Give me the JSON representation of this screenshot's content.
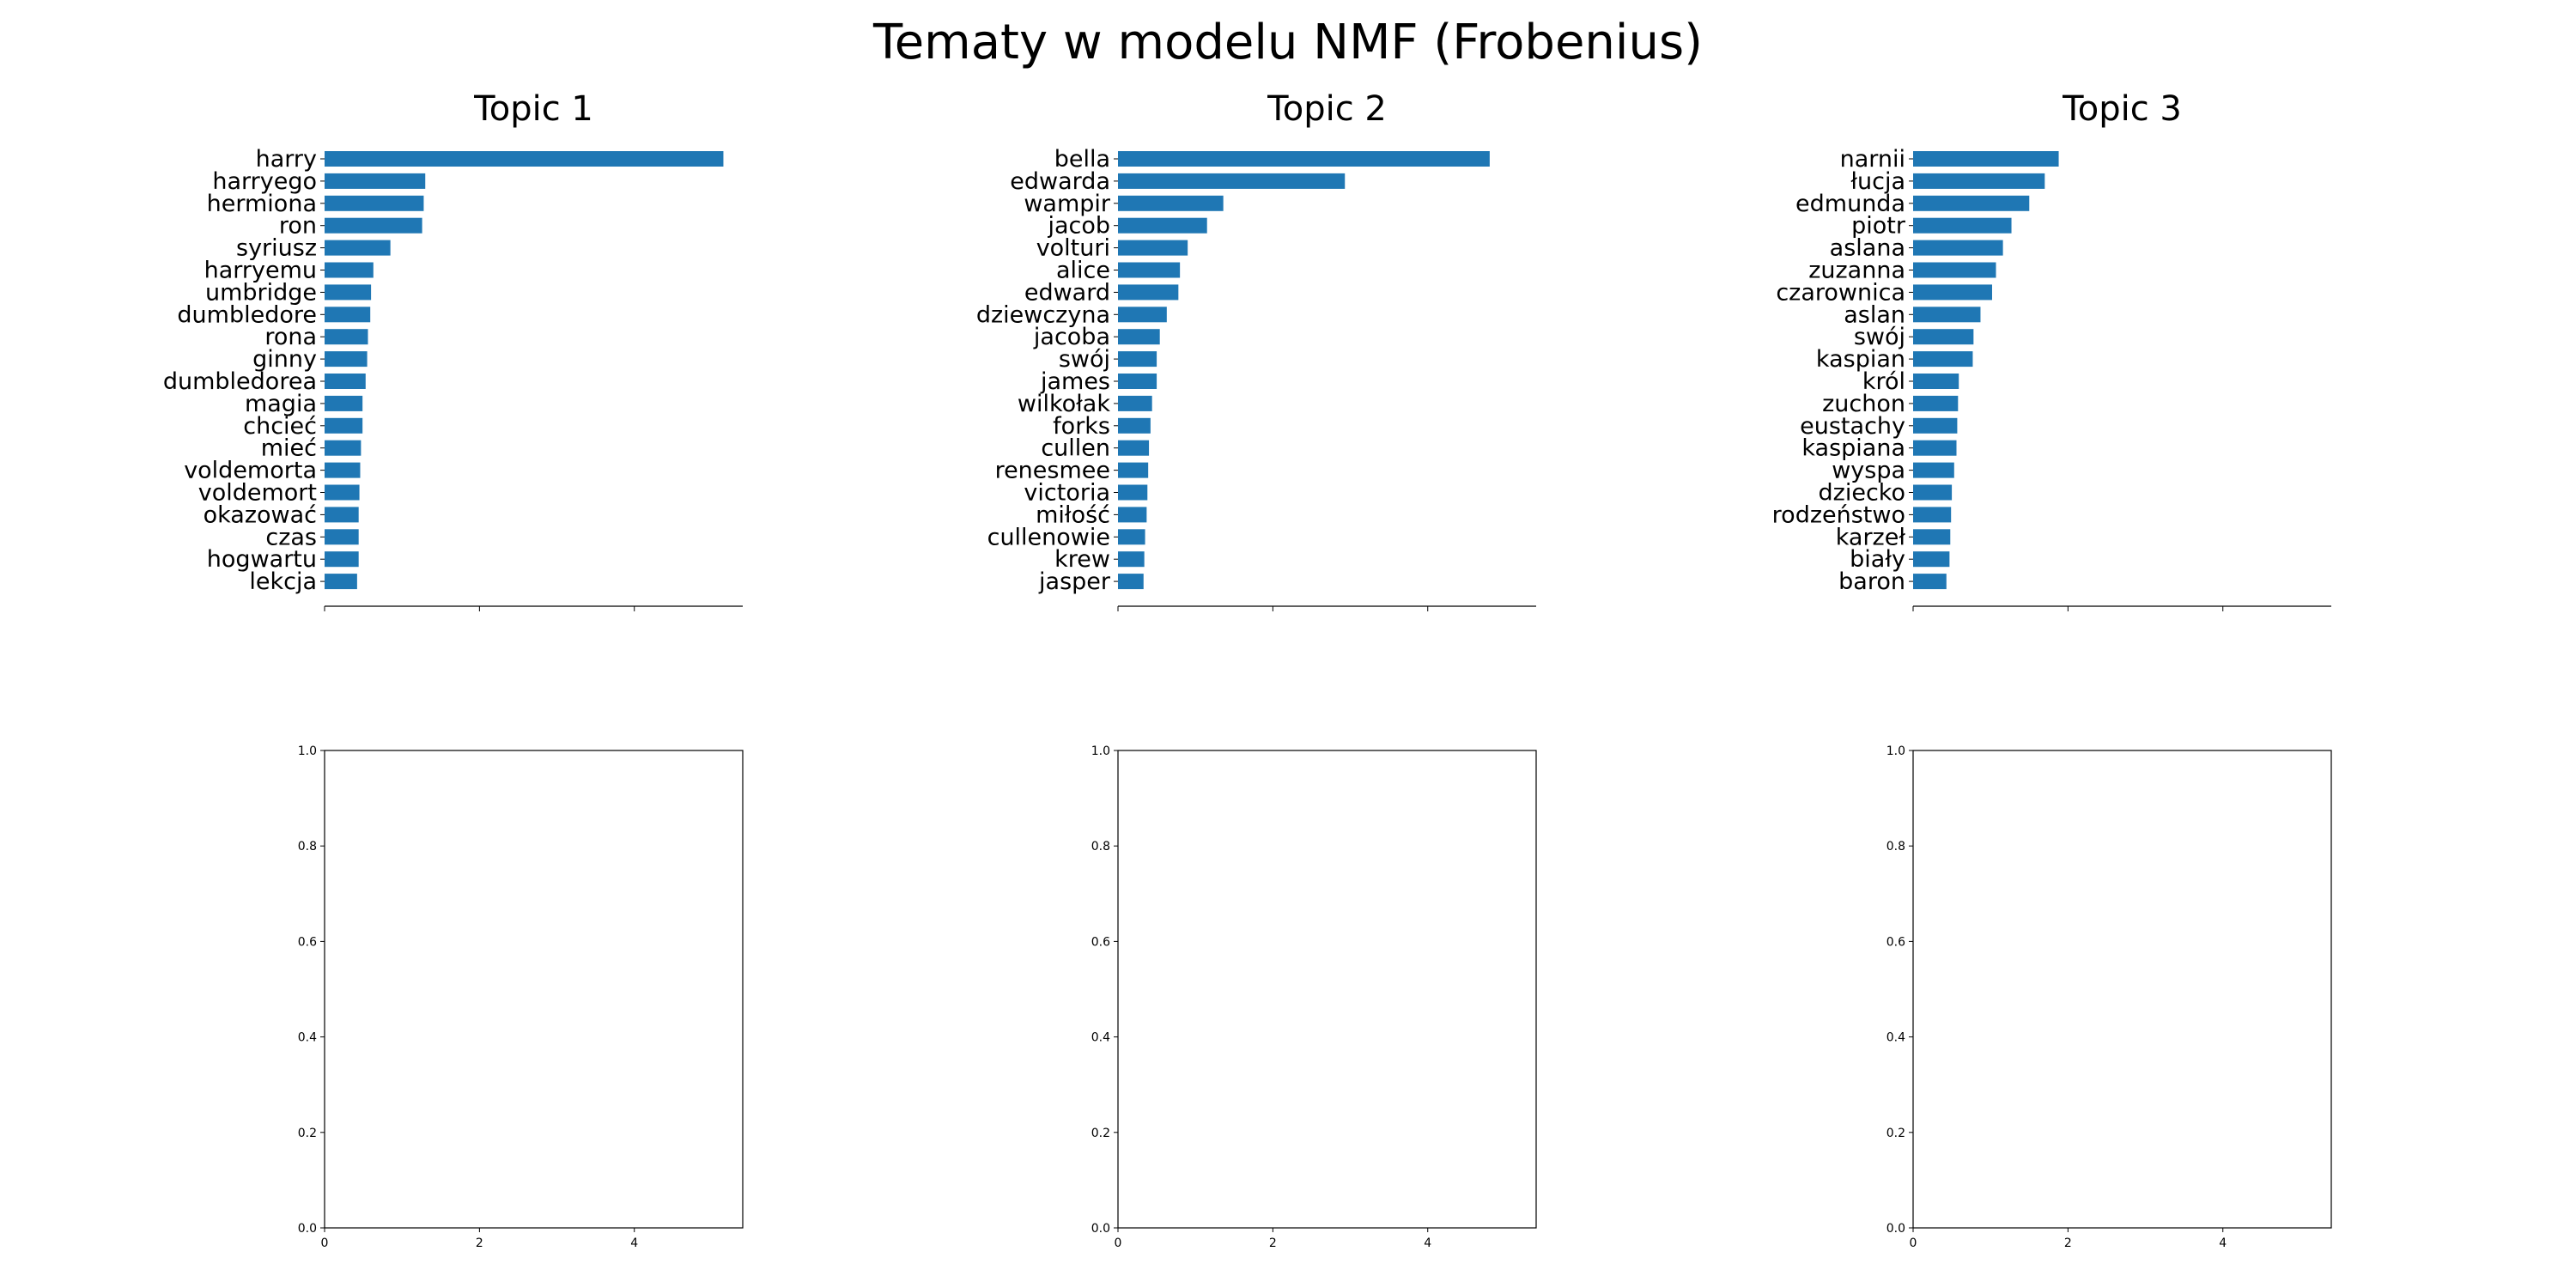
{
  "title": "Tematy w modelu NMF (Frobenius)",
  "bar_color": "#1f77b4",
  "chart_data": [
    {
      "type": "bar",
      "orientation": "horizontal",
      "title": "Topic 1",
      "categories": [
        "harry",
        "harryego",
        "hermiona",
        "ron",
        "syriusz",
        "harryemu",
        "umbridge",
        "dumbledore",
        "rona",
        "ginny",
        "dumbledorea",
        "magia",
        "chcieć",
        "mieć",
        "voldemorta",
        "voldemort",
        "okazować",
        "czas",
        "hogwartu",
        "lekcja"
      ],
      "values": [
        5.15,
        1.3,
        1.28,
        1.26,
        0.85,
        0.63,
        0.6,
        0.59,
        0.56,
        0.55,
        0.53,
        0.49,
        0.49,
        0.47,
        0.46,
        0.45,
        0.44,
        0.44,
        0.44,
        0.42
      ],
      "xlim": [
        0,
        5.4
      ],
      "xticks": [
        0,
        2,
        4
      ],
      "show_xtick_labels": false
    },
    {
      "type": "bar",
      "orientation": "horizontal",
      "title": "Topic 2",
      "categories": [
        "bella",
        "edwarda",
        "wampir",
        "jacob",
        "volturi",
        "alice",
        "edward",
        "dziewczyna",
        "jacoba",
        "swój",
        "james",
        "wilkołak",
        "forks",
        "cullen",
        "renesmee",
        "victoria",
        "miłość",
        "cullenowie",
        "krew",
        "jasper"
      ],
      "values": [
        4.8,
        2.93,
        1.36,
        1.15,
        0.9,
        0.8,
        0.78,
        0.63,
        0.54,
        0.5,
        0.5,
        0.44,
        0.42,
        0.4,
        0.39,
        0.38,
        0.37,
        0.35,
        0.34,
        0.33
      ],
      "xlim": [
        0,
        5.4
      ],
      "xticks": [
        0,
        2,
        4
      ],
      "show_xtick_labels": false
    },
    {
      "type": "bar",
      "orientation": "horizontal",
      "title": "Topic 3",
      "categories": [
        "narnii",
        "łucja",
        "edmunda",
        "piotr",
        "aslana",
        "zuzanna",
        "czarownica",
        "aslan",
        "swój",
        "kaspian",
        "król",
        "zuchon",
        "eustachy",
        "kaspiana",
        "wyspa",
        "dziecko",
        "rodzeństwo",
        "karzeł",
        "biały",
        "baron"
      ],
      "values": [
        1.88,
        1.7,
        1.5,
        1.27,
        1.16,
        1.07,
        1.02,
        0.87,
        0.78,
        0.77,
        0.59,
        0.58,
        0.57,
        0.56,
        0.53,
        0.5,
        0.49,
        0.48,
        0.47,
        0.43
      ],
      "xlim": [
        0,
        5.4
      ],
      "xticks": [
        0,
        2,
        4
      ],
      "show_xtick_labels": false
    },
    {
      "type": "empty",
      "title": "",
      "xlim": [
        0,
        5.4
      ],
      "ylim": [
        0.0,
        1.0
      ],
      "xticks": [
        "0",
        "2",
        "4"
      ],
      "yticks": [
        "0.0",
        "0.2",
        "0.4",
        "0.6",
        "0.8",
        "1.0"
      ]
    },
    {
      "type": "empty",
      "title": "",
      "xlim": [
        0,
        5.4
      ],
      "ylim": [
        0.0,
        1.0
      ],
      "xticks": [
        "0",
        "2",
        "4"
      ],
      "yticks": [
        "0.0",
        "0.2",
        "0.4",
        "0.6",
        "0.8",
        "1.0"
      ]
    },
    {
      "type": "empty",
      "title": "",
      "xlim": [
        0,
        5.4
      ],
      "ylim": [
        0.0,
        1.0
      ],
      "xticks": [
        "0",
        "2",
        "4"
      ],
      "yticks": [
        "0.0",
        "0.2",
        "0.4",
        "0.6",
        "0.8",
        "1.0"
      ]
    }
  ]
}
